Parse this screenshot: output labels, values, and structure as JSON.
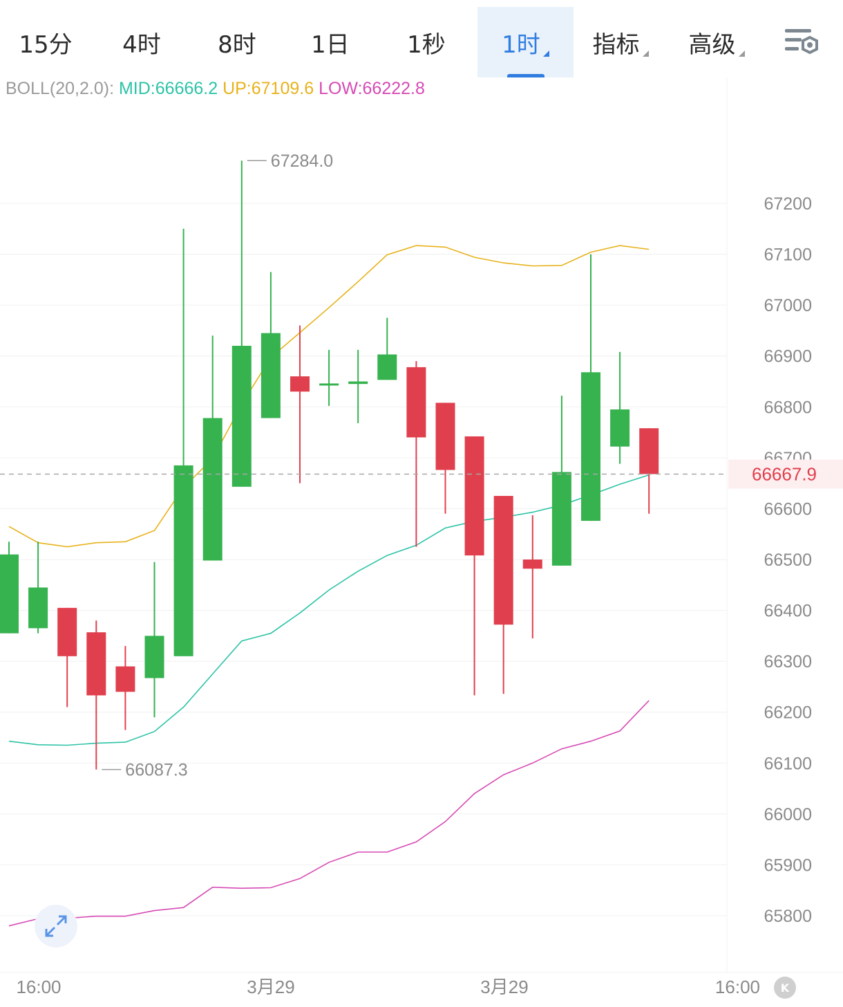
{
  "tabs": [
    {
      "label": "15分",
      "active": false,
      "dropdown": false
    },
    {
      "label": "4时",
      "active": false,
      "dropdown": false
    },
    {
      "label": "8时",
      "active": false,
      "dropdown": false
    },
    {
      "label": "1日",
      "active": false,
      "dropdown": false
    },
    {
      "label": "1秒",
      "active": false,
      "dropdown": false
    },
    {
      "label": "1时",
      "active": true,
      "dropdown": true
    },
    {
      "label": "指标",
      "active": false,
      "dropdown": true
    },
    {
      "label": "高级",
      "active": false,
      "dropdown": true
    }
  ],
  "indicator": {
    "name": "BOLL(20,2.0):",
    "mid": "MID:66666.2",
    "up": "UP:67109.6",
    "low": "LOW:66222.8"
  },
  "colors": {
    "up_candle": "#36b24f",
    "down_candle": "#e0404d",
    "mid_line": "#2cc3a6",
    "up_line": "#e8b21b",
    "low_line": "#d64ab4",
    "accent": "#2f7de1",
    "current_price": "#e0404d"
  },
  "icons": {
    "settings": "settings-gear-icon",
    "expand": "expand-arrows-icon",
    "k": "k-badge-icon"
  },
  "k_badge": "K",
  "chart_data": {
    "type": "candlestick",
    "ylim": [
      65720,
      67360
    ],
    "y_ticks": [
      67200,
      67100,
      67000,
      66900,
      66800,
      66700,
      66600,
      66500,
      66400,
      66300,
      66200,
      66100,
      66000,
      65900,
      65800
    ],
    "x_labels": [
      "16:00",
      "3月29",
      "3月29",
      "16:00"
    ],
    "grid": true,
    "current_price": 66667.9,
    "current_price_label": "66667.9",
    "max_label": "67284.0",
    "min_label": "66087.3",
    "candles": [
      {
        "o": 66355,
        "h": 66535,
        "l": 66355,
        "c": 66510
      },
      {
        "o": 66365,
        "h": 66535,
        "l": 66355,
        "c": 66445
      },
      {
        "o": 66405,
        "h": 66405,
        "l": 66210,
        "c": 66310
      },
      {
        "o": 66357,
        "h": 66380,
        "l": 66087.3,
        "c": 66233
      },
      {
        "o": 66290,
        "h": 66330,
        "l": 66165,
        "c": 66240
      },
      {
        "o": 66267,
        "h": 66495,
        "l": 66190,
        "c": 66350
      },
      {
        "o": 66310,
        "h": 67150,
        "l": 66310,
        "c": 66685
      },
      {
        "o": 66498,
        "h": 66940,
        "l": 66498,
        "c": 66778
      },
      {
        "o": 66643,
        "h": 67284,
        "l": 66643,
        "c": 66920
      },
      {
        "o": 66778,
        "h": 67065,
        "l": 66778,
        "c": 66945
      },
      {
        "o": 66860,
        "h": 66960,
        "l": 66650,
        "c": 66830
      },
      {
        "o": 66842,
        "h": 66912,
        "l": 66802,
        "c": 66846
      },
      {
        "o": 66845,
        "h": 66912,
        "l": 66768,
        "c": 66850
      },
      {
        "o": 66853,
        "h": 66975,
        "l": 66853,
        "c": 66903
      },
      {
        "o": 66878,
        "h": 66890,
        "l": 66525,
        "c": 66740
      },
      {
        "o": 66808,
        "h": 66808,
        "l": 66590,
        "c": 66676
      },
      {
        "o": 66742,
        "h": 66742,
        "l": 66233,
        "c": 66508
      },
      {
        "o": 66625,
        "h": 66625,
        "l": 66236,
        "c": 66372
      },
      {
        "o": 66500,
        "h": 66587,
        "l": 66345,
        "c": 66482
      },
      {
        "o": 66488,
        "h": 66822,
        "l": 66488,
        "c": 66672
      },
      {
        "o": 66576,
        "h": 67100,
        "l": 66576,
        "c": 66868
      },
      {
        "o": 66722,
        "h": 66908,
        "l": 66688,
        "c": 66795
      },
      {
        "o": 66758,
        "h": 66758,
        "l": 66590,
        "c": 66667.9
      }
    ],
    "boll_up": [
      66565,
      66533,
      66525,
      66533,
      66535,
      66557,
      66642,
      66698,
      66805,
      66897,
      66946,
      66995,
      67046,
      67099,
      67117,
      67114,
      67094,
      67083,
      67077,
      67078,
      67104,
      67117,
      67109.6
    ],
    "boll_mid": [
      66143,
      66136,
      66135,
      66139,
      66141,
      66162,
      66210,
      66275,
      66340,
      66355,
      66395,
      66440,
      66477,
      66508,
      66528,
      66562,
      66575,
      66583,
      66593,
      66607,
      66627,
      66648,
      66666.2
    ],
    "boll_low": [
      65780,
      65794,
      65795,
      65799,
      65799,
      65810,
      65816,
      65856,
      65854,
      65855,
      65873,
      65905,
      65925,
      65925,
      65945,
      65985,
      66040,
      66077,
      66100,
      66128,
      66143,
      66163,
      66222.8
    ]
  }
}
